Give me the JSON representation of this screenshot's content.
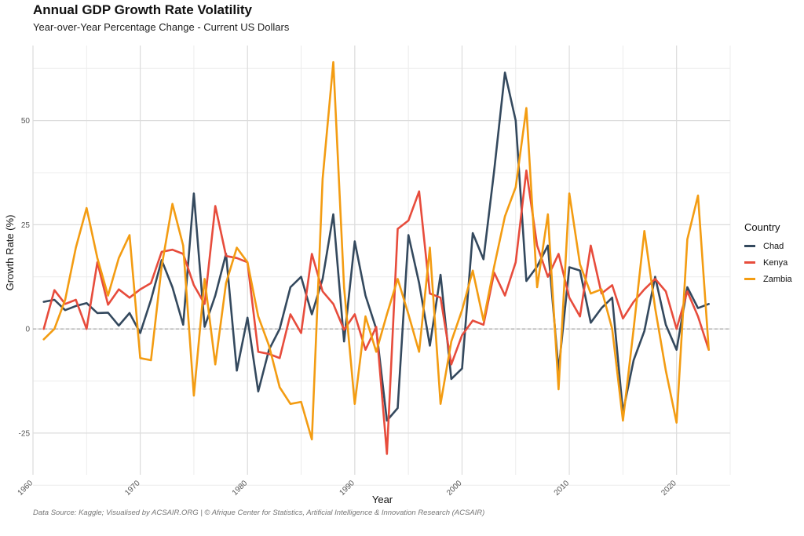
{
  "title": "Annual GDP Growth Rate Volatility",
  "subtitle": "Year-over-Year Percentage Change - Current US Dollars",
  "caption": "Data Source: Kaggle; Visualised by ACSAIR.ORG | © Afrique Center for Statistics, Artificial Intelligence & Innovation Research (ACSAIR)",
  "chart_data": {
    "type": "line",
    "title": "Annual GDP Growth Rate Volatility",
    "subtitle": "Year-over-Year Percentage Change - Current US Dollars",
    "xlabel": "Year",
    "ylabel": "Growth Rate (%)",
    "xlim": [
      1960,
      2025
    ],
    "ylim": [
      -35,
      68
    ],
    "x_ticks": [
      1960,
      1970,
      1980,
      1990,
      2000,
      2010,
      2020
    ],
    "y_ticks": [
      -25,
      0,
      25,
      50
    ],
    "y_tick_labels": [
      "-25",
      "0",
      "25",
      "50"
    ],
    "legend_title": "Country",
    "legend_position": "right",
    "x": [
      1961,
      1962,
      1963,
      1964,
      1965,
      1966,
      1967,
      1968,
      1969,
      1970,
      1971,
      1972,
      1973,
      1974,
      1975,
      1976,
      1977,
      1978,
      1979,
      1980,
      1981,
      1982,
      1983,
      1984,
      1985,
      1986,
      1987,
      1988,
      1989,
      1990,
      1991,
      1992,
      1993,
      1994,
      1995,
      1996,
      1997,
      1998,
      1999,
      2000,
      2001,
      2002,
      2003,
      2004,
      2005,
      2006,
      2007,
      2008,
      2009,
      2010,
      2011,
      2012,
      2013,
      2014,
      2015,
      2016,
      2017,
      2018,
      2019,
      2020,
      2021,
      2022,
      2023
    ],
    "series": [
      {
        "name": "Chad",
        "color": "#34495e",
        "values": [
          6.5,
          7,
          4.5,
          5.5,
          6.2,
          3.8,
          3.9,
          0.8,
          3.8,
          -1,
          7,
          16.5,
          10,
          1,
          32.5,
          0.5,
          8,
          18,
          -10,
          2.7,
          -15,
          -5,
          0,
          10,
          12.5,
          3.5,
          12,
          27.5,
          -3,
          21,
          8,
          0,
          -22,
          -19,
          22.5,
          11,
          -4,
          13,
          -12,
          -9.5,
          23,
          16.7,
          38,
          61.5,
          50,
          11.5,
          15,
          20,
          -10,
          14.8,
          14,
          1.5,
          5,
          7.5,
          -20,
          -7.5,
          -0.5,
          12.5,
          1,
          -5,
          10,
          5,
          6
        ]
      },
      {
        "name": "Kenya",
        "color": "#e74c3c",
        "values": [
          0,
          9.3,
          6,
          7,
          0,
          16,
          5.8,
          9.5,
          7.5,
          9.5,
          11,
          18.5,
          19,
          18,
          10.5,
          6,
          29.5,
          17.5,
          17,
          16,
          -5.5,
          -6,
          -7,
          3.5,
          -1,
          18,
          9,
          6,
          -0.2,
          3.5,
          -5,
          0.5,
          -30,
          24,
          26,
          33,
          8.5,
          7.5,
          -8.5,
          -1.5,
          2,
          1,
          13.5,
          8,
          16,
          38,
          20,
          12.5,
          18,
          7.5,
          3,
          20,
          8.5,
          10.5,
          2.5,
          6.5,
          9.5,
          12,
          9,
          0,
          9,
          3,
          -5
        ]
      },
      {
        "name": "Zambia",
        "color": "#f39c12",
        "values": [
          -2.5,
          0,
          7,
          19.5,
          29,
          17,
          8,
          17,
          22.5,
          -7,
          -7.5,
          15,
          30,
          20,
          -16,
          12,
          -8.5,
          11,
          19.5,
          16,
          3,
          -4,
          -14,
          -18,
          -17.5,
          -26.5,
          36,
          64,
          10,
          -18,
          3,
          -5.5,
          3.5,
          12,
          3.5,
          -5.5,
          19.5,
          -18,
          -3,
          4.5,
          14,
          2,
          15,
          27,
          34,
          53,
          10,
          27.5,
          -14.5,
          32.5,
          15.5,
          8.5,
          9.5,
          0,
          -22,
          0,
          23.5,
          5,
          -10,
          -22.5,
          21.5,
          32,
          -5
        ]
      }
    ]
  }
}
